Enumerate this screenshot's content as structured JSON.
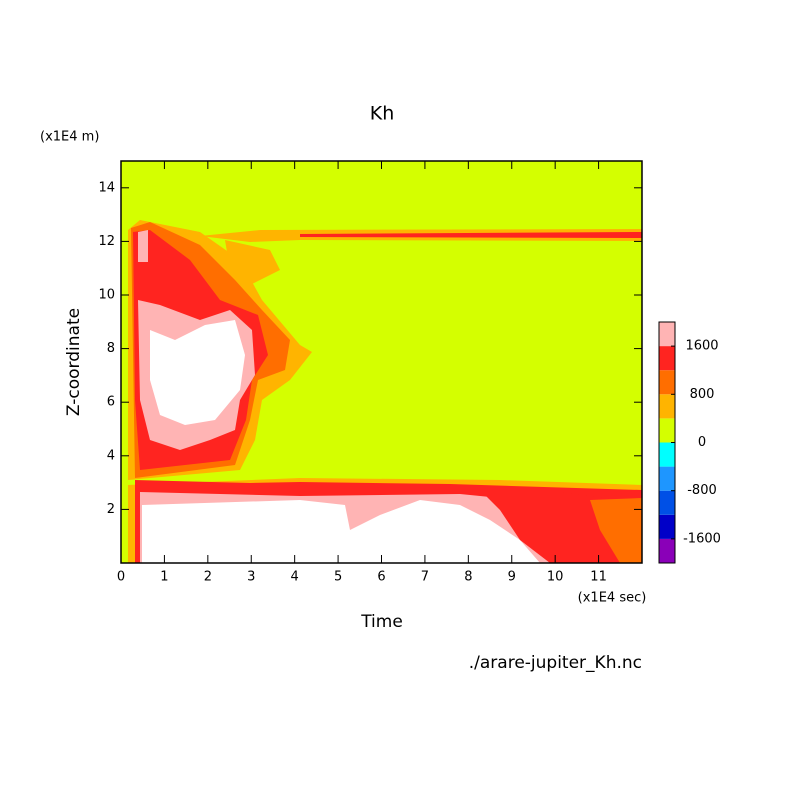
{
  "chart_data": {
    "type": "contour",
    "title": "Kh",
    "x_label": "Time",
    "y_label": "Z-coordinate",
    "x_unit": "(x1E4 sec)",
    "y_unit": "(x1E4 m)",
    "file": "./arare-jupiter_Kh.nc",
    "xlim": [
      0,
      12
    ],
    "xticks": [
      0,
      1,
      2,
      3,
      4,
      5,
      6,
      7,
      8,
      9,
      10,
      11
    ],
    "ylim": [
      0,
      15
    ],
    "yticks": [
      2,
      4,
      6,
      8,
      10,
      12,
      14
    ],
    "colorbar": {
      "levels": [
        -2000,
        -1600,
        -1200,
        -800,
        -400,
        0,
        400,
        800,
        1200,
        1600,
        2000
      ],
      "colors": [
        "#8a00b8",
        "#0000c8",
        "#0050e6",
        "#1e96ff",
        "#00ffff",
        "#d4ff00",
        "#ffb400",
        "#ff6e00",
        "#ff2420",
        "#ffb4b4"
      ],
      "over_color": "#ffffff",
      "ticks": [
        -1600,
        -800,
        0,
        800,
        1600
      ]
    }
  }
}
